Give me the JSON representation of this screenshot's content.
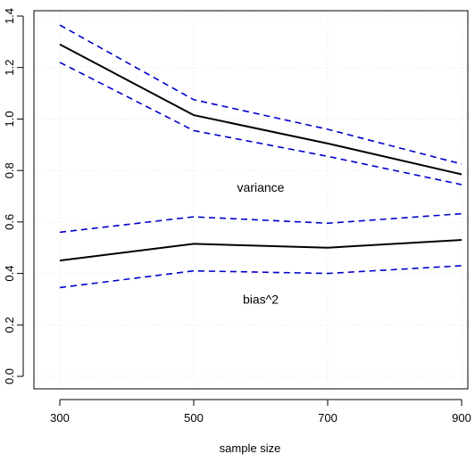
{
  "chart_data": {
    "type": "line",
    "title": "",
    "xlabel": "sample size",
    "ylabel": "",
    "x": [
      300,
      500,
      700,
      900
    ],
    "xticks": [
      300,
      500,
      700,
      900
    ],
    "yticks": [
      0.0,
      0.2,
      0.4,
      0.6,
      0.8,
      1.0,
      1.2,
      1.4
    ],
    "ytick_labels": [
      "0.0",
      "0.2",
      "0.4",
      "0.6",
      "0.8",
      "1.0",
      "1.2",
      "1.4"
    ],
    "xlim": [
      300,
      900
    ],
    "ylim": [
      0,
      1.4
    ],
    "grid": true,
    "series": [
      {
        "name": "variance",
        "style": "solid",
        "color": "#000000",
        "values": [
          1.29,
          1.015,
          0.905,
          0.785
        ]
      },
      {
        "name": "",
        "style": "dashed",
        "color": "#0000cc",
        "values": [
          1.365,
          1.075,
          0.96,
          0.825
        ]
      },
      {
        "name": "",
        "style": "dashed",
        "color": "#0000cc",
        "values": [
          1.22,
          0.955,
          0.855,
          0.745
        ]
      },
      {
        "name": "bias^2",
        "style": "solid",
        "color": "#000000",
        "values": [
          0.45,
          0.515,
          0.5,
          0.53
        ]
      },
      {
        "name": "",
        "style": "dashed",
        "color": "#0000cc",
        "values": [
          0.56,
          0.62,
          0.595,
          0.632
        ]
      },
      {
        "name": "",
        "style": "dashed",
        "color": "#0000cc",
        "values": [
          0.345,
          0.41,
          0.4,
          0.43
        ]
      }
    ],
    "annotations": [
      {
        "text": "variance",
        "x": 600,
        "y": 0.735
      },
      {
        "text": "bias^2",
        "x": 600,
        "y": 0.3
      }
    ]
  }
}
